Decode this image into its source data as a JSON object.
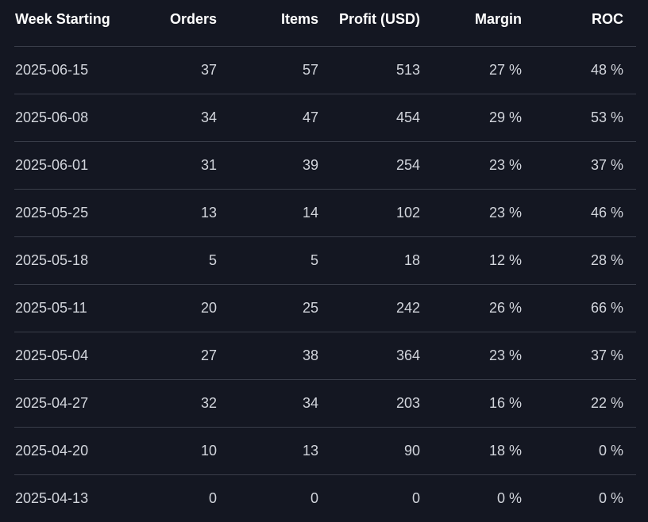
{
  "table": {
    "columns": [
      "Week Starting",
      "Orders",
      "Items",
      "Profit (USD)",
      "Margin",
      "ROC"
    ],
    "rows": [
      [
        "2025-06-15",
        "37",
        "57",
        "513",
        "27 %",
        "48 %"
      ],
      [
        "2025-06-08",
        "34",
        "47",
        "454",
        "29 %",
        "53 %"
      ],
      [
        "2025-06-01",
        "31",
        "39",
        "254",
        "23 %",
        "37 %"
      ],
      [
        "2025-05-25",
        "13",
        "14",
        "102",
        "23 %",
        "46 %"
      ],
      [
        "2025-05-18",
        "5",
        "5",
        "18",
        "12 %",
        "28 %"
      ],
      [
        "2025-05-11",
        "20",
        "25",
        "242",
        "26 %",
        "66 %"
      ],
      [
        "2025-05-04",
        "27",
        "38",
        "364",
        "23 %",
        "37 %"
      ],
      [
        "2025-04-27",
        "32",
        "34",
        "203",
        "16 %",
        "22 %"
      ],
      [
        "2025-04-20",
        "10",
        "13",
        "90",
        "18 %",
        "0 %"
      ],
      [
        "2025-04-13",
        "0",
        "0",
        "0",
        "0 %",
        "0 %"
      ]
    ]
  },
  "colors": {
    "background": "#141722",
    "divider": "#3a3e4a",
    "header_text": "#ffffff",
    "cell_text": "#d2d5dc"
  }
}
